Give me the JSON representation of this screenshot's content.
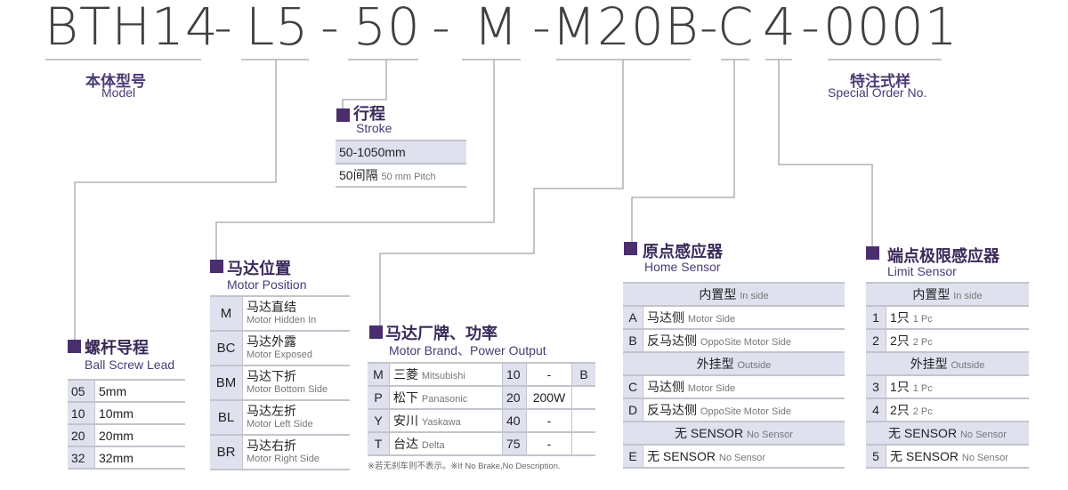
{
  "code": {
    "segments": [
      "BTH14",
      "-",
      "L5",
      "-",
      "50",
      "-",
      "M",
      "-M20B-",
      "C",
      "4",
      "-",
      "0001"
    ]
  },
  "labels": {
    "model": {
      "cn": "本体型号",
      "en": "Model"
    },
    "special": {
      "cn": "特注式样",
      "en": "Special Order No."
    }
  },
  "stroke": {
    "title_cn": "行程",
    "title_en": "Stroke",
    "rows": [
      {
        "main": "50-1050mm"
      },
      {
        "main": "50间隔",
        "small": "50 mm Pitch"
      }
    ]
  },
  "ball_screw": {
    "title_cn": "螺杆导程",
    "title_en": "Ball Screw Lead",
    "rows": [
      {
        "code": "05",
        "value": "5mm"
      },
      {
        "code": "10",
        "value": "10mm"
      },
      {
        "code": "20",
        "value": "20mm"
      },
      {
        "code": "32",
        "value": "32mm"
      }
    ]
  },
  "motor_position": {
    "title_cn": "马达位置",
    "title_en": "Motor Position",
    "rows": [
      {
        "code": "M",
        "cn": "马达直结",
        "en": "Motor Hidden In"
      },
      {
        "code": "BC",
        "cn": "马达外露",
        "en": "Motor Exposed"
      },
      {
        "code": "BM",
        "cn": "马达下折",
        "en": "Motor Bottom Side"
      },
      {
        "code": "BL",
        "cn": "马达左折",
        "en": "Motor Left Side"
      },
      {
        "code": "BR",
        "cn": "马达右折",
        "en": "Motor Right Side"
      }
    ]
  },
  "motor_brand": {
    "title_cn": "马达厂牌、功率",
    "title_en": "Motor Brand、Power Output",
    "rows": [
      {
        "code": "M",
        "cn": "三菱",
        "en": "Mitsubishi",
        "power_code": "10",
        "power": "-",
        "brake": "B"
      },
      {
        "code": "P",
        "cn": "松下",
        "en": "Panasonic",
        "power_code": "20",
        "power": "200W",
        "brake": ""
      },
      {
        "code": "Y",
        "cn": "安川",
        "en": "Yaskawa",
        "power_code": "40",
        "power": "-",
        "brake": ""
      },
      {
        "code": "T",
        "cn": "台达",
        "en": "Delta",
        "power_code": "75",
        "power": "-",
        "brake": ""
      }
    ],
    "note": "※若无刹车则不表示。※If No Brake,No Description."
  },
  "home_sensor": {
    "title_cn": "原点感应器",
    "title_en": "Home Sensor",
    "rows": [
      {
        "header": true,
        "cn": "内置型",
        "en": "In side"
      },
      {
        "code": "A",
        "cn": "马达侧",
        "en": "Motor Side"
      },
      {
        "code": "B",
        "cn": "反马达侧",
        "en": "OppoSite Motor Side"
      },
      {
        "header": true,
        "cn": "外挂型",
        "en": "Outside"
      },
      {
        "code": "C",
        "cn": "马达侧",
        "en": "Motor Side"
      },
      {
        "code": "D",
        "cn": "反马达侧",
        "en": "OppoSite Motor Side"
      },
      {
        "header": true,
        "cn": "无 SENSOR",
        "en": "No Sensor"
      },
      {
        "code": "E",
        "cn": "无 SENSOR",
        "en": "No Sensor"
      }
    ]
  },
  "limit_sensor": {
    "title_cn": "端点极限感应器",
    "title_en": "Limit Sensor",
    "rows": [
      {
        "header": true,
        "cn": "内置型",
        "en": "In side"
      },
      {
        "code": "1",
        "cn": "1只",
        "en": "1 Pc"
      },
      {
        "code": "2",
        "cn": "2只",
        "en": "2 Pc"
      },
      {
        "header": true,
        "cn": "外挂型",
        "en": "Outside"
      },
      {
        "code": "3",
        "cn": "1只",
        "en": "1 Pc"
      },
      {
        "code": "4",
        "cn": "2只",
        "en": "2 Pc"
      },
      {
        "header": true,
        "cn": "无 SENSOR",
        "en": "No Sensor"
      },
      {
        "code": "5",
        "cn": "无 SENSOR",
        "en": "No Sensor"
      }
    ]
  },
  "colors": {
    "accent": "#4b2e6e",
    "shade": "#dfe1ef",
    "line": "#b0b0b8",
    "code_text": "#404040"
  }
}
